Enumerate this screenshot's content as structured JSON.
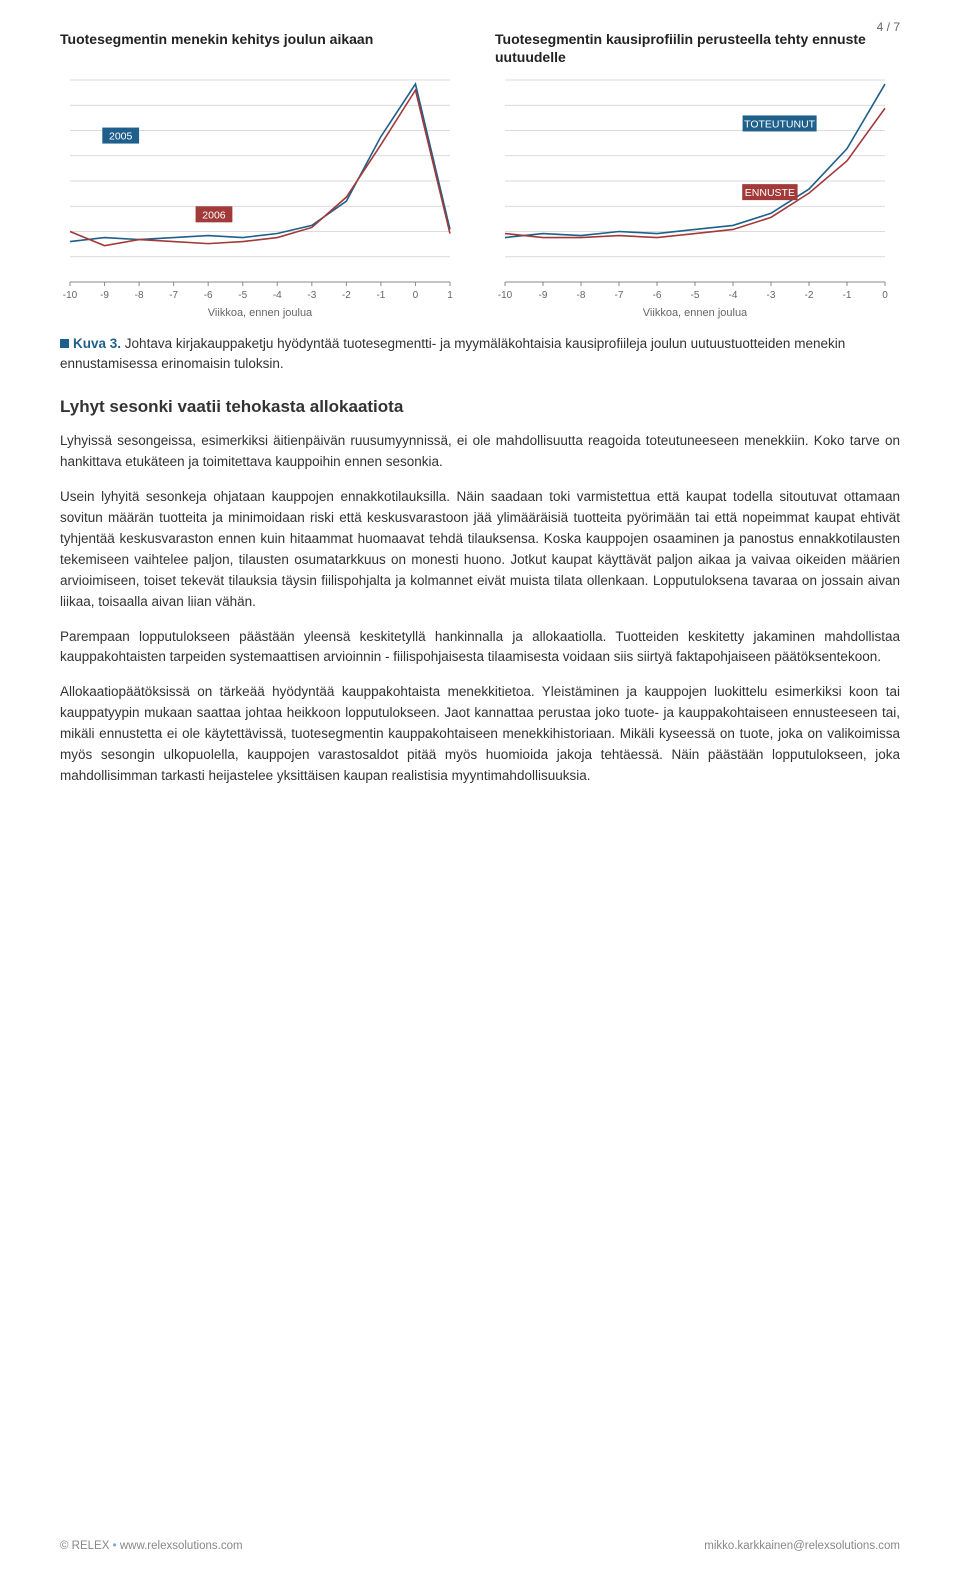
{
  "page_number": "4 / 7",
  "chart_left": {
    "title": "Tuotesegmentin menekin kehitys joulun aikaan",
    "type": "line",
    "xlabel": "Viikkoa, ennen joulua",
    "x_ticks": [
      -10,
      -9,
      -8,
      -7,
      -6,
      -5,
      -4,
      -3,
      -2,
      -1,
      0,
      1
    ],
    "xlim": [
      -10,
      1
    ],
    "ylim": [
      0,
      100
    ],
    "gridline_count": 8,
    "background_color": "#ffffff",
    "grid_color": "#cfcfcf",
    "axis_text_color": "#666666",
    "axis_fontsize": 10,
    "series": [
      {
        "name": "2005",
        "color": "#1f5f8b",
        "tag_bg": "#1f5f8b",
        "tag_x": -8,
        "tag_y": 72,
        "x": [
          -10,
          -9,
          -8,
          -7,
          -6,
          -5,
          -4,
          -3,
          -2,
          -1,
          0,
          1
        ],
        "y": [
          20,
          22,
          21,
          22,
          23,
          22,
          24,
          28,
          40,
          72,
          98,
          26
        ]
      },
      {
        "name": "2006",
        "color": "#a23a3a",
        "tag_bg": "#a23a3a",
        "tag_x": -5.3,
        "tag_y": 33,
        "x": [
          -10,
          -9,
          -8,
          -7,
          -6,
          -5,
          -4,
          -3,
          -2,
          -1,
          0,
          1
        ],
        "y": [
          25,
          18,
          21,
          20,
          19,
          20,
          22,
          27,
          42,
          68,
          95,
          24
        ]
      }
    ],
    "line_width": 1.6
  },
  "chart_right": {
    "title": "Tuotesegmentin kausiprofiilin perusteella tehty ennuste uutuudelle",
    "type": "line",
    "xlabel": "Viikkoa, ennen joulua",
    "x_ticks": [
      -10,
      -9,
      -8,
      -7,
      -6,
      -5,
      -4,
      -3,
      -2,
      -1,
      0
    ],
    "xlim": [
      -10,
      0
    ],
    "ylim": [
      0,
      100
    ],
    "gridline_count": 8,
    "background_color": "#ffffff",
    "grid_color": "#cfcfcf",
    "axis_text_color": "#666666",
    "axis_fontsize": 10,
    "series": [
      {
        "name": "TOTEUTUNUT",
        "color": "#1f5f8b",
        "tag_bg": "#1f5f8b",
        "tag_x": -1.8,
        "tag_y": 78,
        "x": [
          -10,
          -9,
          -8,
          -7,
          -6,
          -5,
          -4,
          -3,
          -2,
          -1,
          0
        ],
        "y": [
          22,
          24,
          23,
          25,
          24,
          26,
          28,
          34,
          46,
          66,
          98
        ]
      },
      {
        "name": "ENNUSTE",
        "color": "#a23a3a",
        "tag_bg": "#a23a3a",
        "tag_x": -2.3,
        "tag_y": 44,
        "x": [
          -10,
          -9,
          -8,
          -7,
          -6,
          -5,
          -4,
          -3,
          -2,
          -1,
          0
        ],
        "y": [
          24,
          22,
          22,
          23,
          22,
          24,
          26,
          32,
          44,
          60,
          86
        ]
      }
    ],
    "line_width": 1.6
  },
  "caption": {
    "label": "Kuva 3.",
    "text": "Johtava kirjakauppaketju hyödyntää tuotesegmentti- ja myymäläkohtaisia kausiprofiileja joulun uutuustuotteiden menekin ennustamisessa erinomaisin tuloksin."
  },
  "section_heading": "Lyhyt sesonki vaatii tehokasta allokaatiota",
  "paragraphs": [
    "Lyhyissä sesongeissa, esimerkiksi äitienpäivän ruusumyynnissä, ei ole mahdollisuutta reagoida toteutuneeseen menekkiin. Koko tarve on hankittava etukäteen ja toimitettava kauppoihin ennen sesonkia.",
    "Usein lyhyitä sesonkeja ohjataan kauppojen ennakkotilauksilla. Näin saadaan toki varmistettua että kaupat todella sitoutuvat ottamaan sovitun määrän tuotteita ja minimoidaan riski että keskusvarastoon jää ylimääräisiä tuotteita pyörimään tai että nopeimmat kaupat ehtivät tyhjentää keskusvaraston ennen kuin hitaammat huomaavat tehdä tilauksensa. Koska kauppojen osaaminen ja panostus ennakkotilausten tekemiseen vaihtelee paljon, tilausten osumatarkkuus on monesti huono. Jotkut kaupat käyttävät paljon aikaa ja vaivaa oikeiden määrien arvioimiseen, toiset tekevät tilauksia täysin fiilispohjalta ja kolmannet eivät muista tilata ollenkaan. Lopputuloksena tavaraa on jossain aivan liikaa, toisaalla aivan liian vähän.",
    "Parempaan lopputulokseen päästään yleensä keskitetyllä hankinnalla ja allokaatiolla. Tuotteiden keskitetty jakaminen mahdollistaa kauppakohtaisten tarpeiden systemaattisen arvioinnin - fiilispohjaisesta tilaamisesta voidaan siis siirtyä faktapohjaiseen päätöksentekoon.",
    "Allokaatiopäätöksissä on tärkeää hyödyntää kauppakohtaista menekkitietoa. Yleistäminen ja kauppojen luokittelu esimerkiksi koon tai kauppatyypin mukaan saattaa johtaa heikkoon lopputulokseen. Jaot kannattaa perustaa joko tuote- ja kauppakohtaiseen ennusteeseen tai, mikäli ennustetta ei ole käytettävissä, tuotesegmentin kauppakohtaiseen menekkihistoriaan. Mikäli kyseessä on tuote, joka on valikoimissa myös sesongin ulkopuolella, kauppojen varastosaldot pitää myös huomioida jakoja tehtäessä. Näin päästään lopputulokseen, joka mahdollisimman tarkasti heijastelee yksittäisen kaupan realistisia myyntimahdollisuuksia."
  ],
  "footer": {
    "copyright": "© RELEX",
    "separator": "•",
    "url": "www.relexsolutions.com",
    "email": "mikko.karkkainen@relexsolutions.com"
  }
}
